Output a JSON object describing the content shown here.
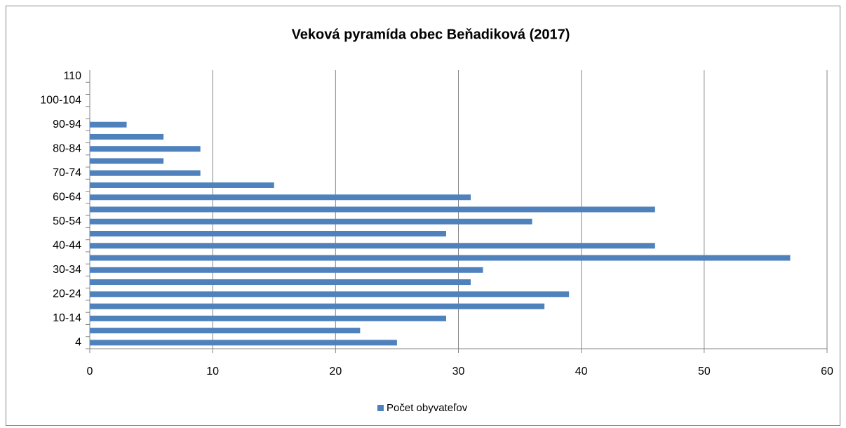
{
  "chart_data": {
    "type": "bar",
    "orientation": "horizontal",
    "title": "Veková pyramída obec Beňadiková (2017)",
    "categories": [
      "4",
      null,
      "10-14",
      null,
      "20-24",
      null,
      "30-34",
      null,
      "40-44",
      null,
      "50-54",
      null,
      "60-64",
      null,
      "70-74",
      null,
      "80-84",
      null,
      "90-94",
      null,
      "100-104",
      null,
      "110"
    ],
    "series": [
      {
        "name": "Počet obyvateľov",
        "color": "#4f81bd",
        "values": [
          25,
          22,
          29,
          37,
          39,
          31,
          32,
          57,
          46,
          29,
          36,
          46,
          31,
          15,
          9,
          6,
          9,
          6,
          3,
          0,
          0,
          0,
          0
        ]
      }
    ],
    "xlim": [
      0,
      60
    ],
    "xticks": [
      0,
      10,
      20,
      30,
      40,
      50,
      60
    ],
    "grid": true,
    "legend": "bottom"
  }
}
